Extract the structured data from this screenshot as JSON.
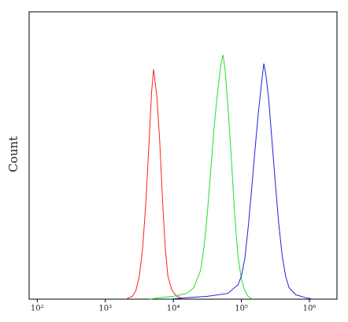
{
  "chart_data": {
    "type": "line",
    "y_label": "Count",
    "log_x": true,
    "xlim": [
      76,
      2540000
    ],
    "ylim": [
      0,
      100
    ],
    "xticks": [
      {
        "value": 100,
        "label": "10²"
      },
      {
        "value": 1000,
        "label": "10³"
      },
      {
        "value": 10000,
        "label": "10⁴"
      },
      {
        "value": 100000,
        "label": "10⁵"
      },
      {
        "value": 1000000,
        "label": "10⁶"
      }
    ],
    "series": [
      {
        "color": "#ff2020",
        "x": [
          1995,
          2512,
          2818,
          3162,
          3548,
          3981,
          4467,
          4786,
          5129,
          5370,
          5754,
          6310,
          6918,
          7586,
          8318,
          9550,
          11220,
          14125
        ],
        "values": [
          0,
          1,
          3,
          8,
          18,
          35,
          58,
          72,
          80,
          76,
          70,
          55,
          35,
          18,
          8,
          3,
          1,
          0
        ]
      },
      {
        "color": "#20e020",
        "x": [
          4467,
          6310,
          10000,
          15849,
          19953,
          25119,
          28184,
          31623,
          35481,
          39811,
          44668,
          50119,
          53703,
          57544,
          63096,
          70795,
          79433,
          89125,
          100000,
          112202,
          125893,
          144544
        ],
        "values": [
          0,
          0.5,
          1,
          2,
          4,
          10,
          18,
          30,
          45,
          60,
          72,
          82,
          85,
          80,
          68,
          50,
          30,
          15,
          7,
          3,
          1,
          0
        ]
      },
      {
        "color": "#2020e0",
        "x": [
          8710,
          15849,
          31623,
          63096,
          89125,
          100000,
          112202,
          125893,
          141254,
          158489,
          177828,
          199526,
          213796,
          229087,
          251189,
          281838,
          316228,
          354813,
          398107,
          446684,
          501187,
          630957,
          891251,
          1122018
        ],
        "values": [
          0,
          0.5,
          1,
          2,
          5,
          8,
          14,
          25,
          38,
          52,
          65,
          76,
          82,
          78,
          70,
          55,
          40,
          26,
          15,
          8,
          4,
          1.5,
          0.5,
          0
        ]
      }
    ]
  }
}
